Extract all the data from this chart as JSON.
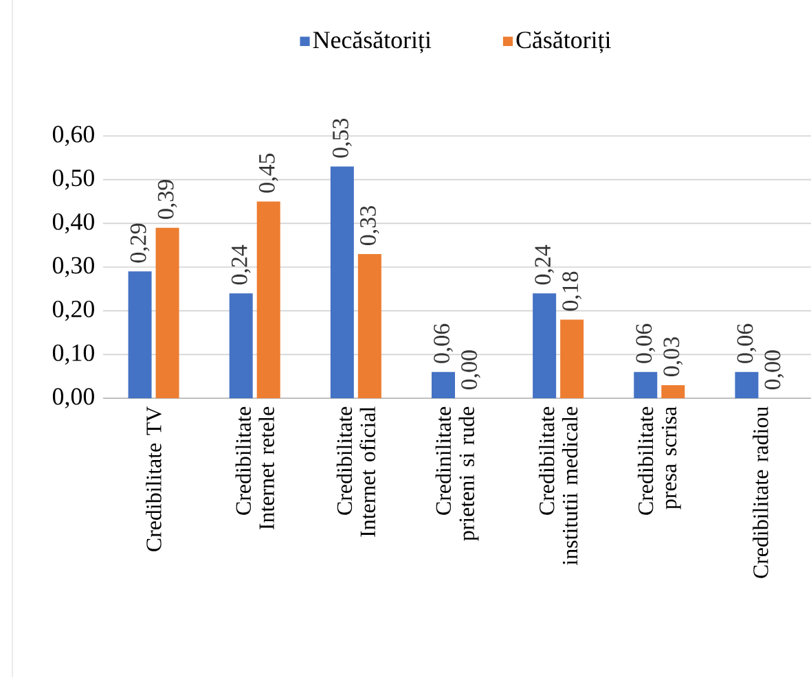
{
  "chart_data": {
    "type": "bar",
    "categories": [
      "Credibilitate TV",
      "Credibilitate Internet retele",
      "Credibilitate Internet oficial",
      "Credinilitate prieteni si rude",
      "Credibilitate institutii medicale",
      "Credibilitate presa scrisa",
      "Credibilitate radiou"
    ],
    "series": [
      {
        "name": "Necăsătoriți",
        "color": "#4472c4",
        "values": [
          0.29,
          0.24,
          0.53,
          0.06,
          0.24,
          0.06,
          0.06
        ],
        "value_labels": [
          "0,29",
          "0,24",
          "0,53",
          "0,06",
          "0,24",
          "0,06",
          "0,06"
        ]
      },
      {
        "name": "Căsătoriți",
        "color": "#ed7d31",
        "values": [
          0.39,
          0.45,
          0.33,
          0.0,
          0.18,
          0.03,
          0.0
        ],
        "value_labels": [
          "0,39",
          "0,45",
          "0,33",
          "0,00",
          "0,18",
          "0,03",
          "0,00"
        ]
      }
    ],
    "ylim": [
      0,
      0.6
    ],
    "yticks": [
      {
        "value": 0,
        "label": "0,00"
      },
      {
        "value": 0.1,
        "label": "0,10"
      },
      {
        "value": 0.2,
        "label": "0,20"
      },
      {
        "value": 0.3,
        "label": "0,30"
      },
      {
        "value": 0.4,
        "label": "0,40"
      },
      {
        "value": 0.5,
        "label": "0,50"
      },
      {
        "value": 0.6,
        "label": "0,60"
      }
    ],
    "grid": "y",
    "legend": "top"
  }
}
